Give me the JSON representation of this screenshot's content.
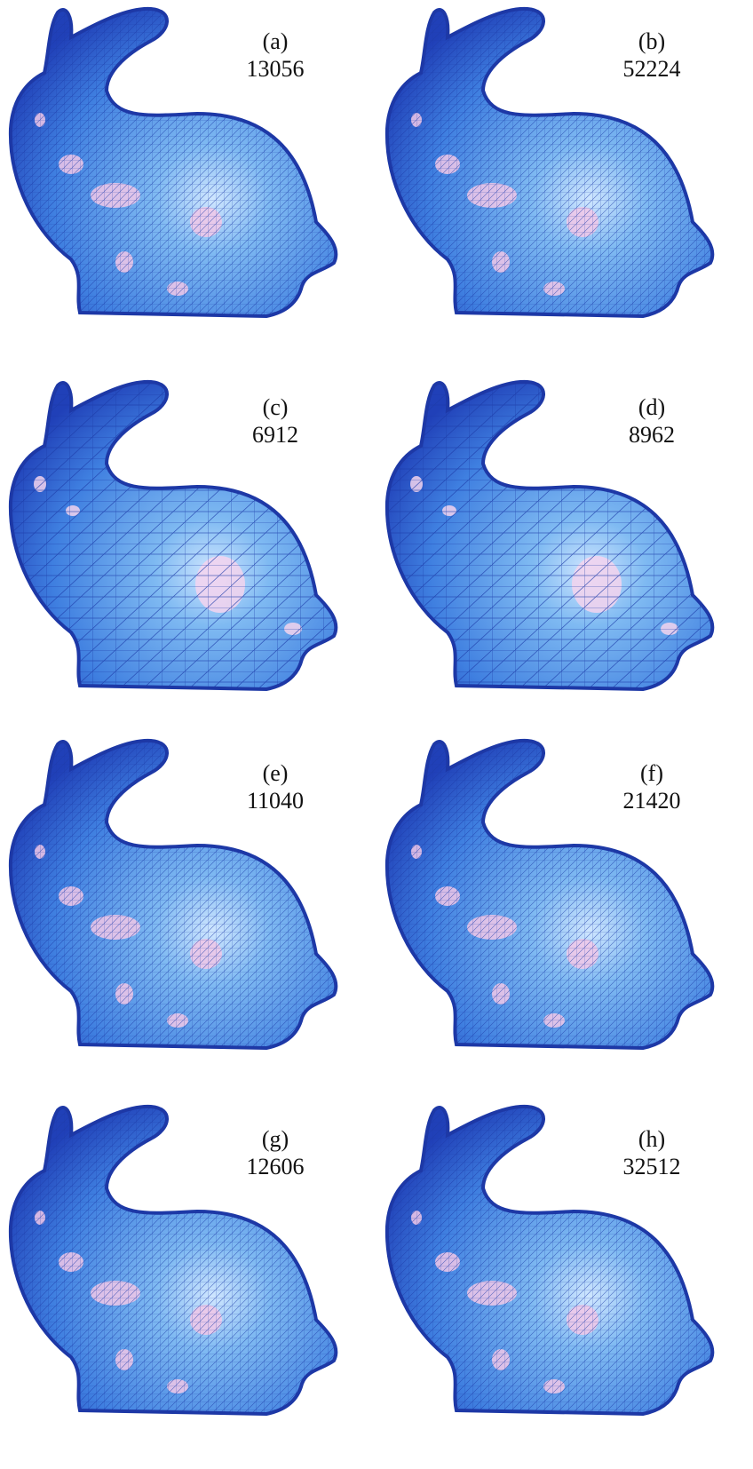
{
  "panels": [
    {
      "label": "(a)",
      "count": "13056"
    },
    {
      "label": "(b)",
      "count": "52224"
    },
    {
      "label": "(c)",
      "count": "6912"
    },
    {
      "label": "(d)",
      "count": "8962"
    },
    {
      "label": "(e)",
      "count": "11040"
    },
    {
      "label": "(f)",
      "count": "21420"
    },
    {
      "label": "(g)",
      "count": "12606"
    },
    {
      "label": "(h)",
      "count": "32512"
    }
  ]
}
